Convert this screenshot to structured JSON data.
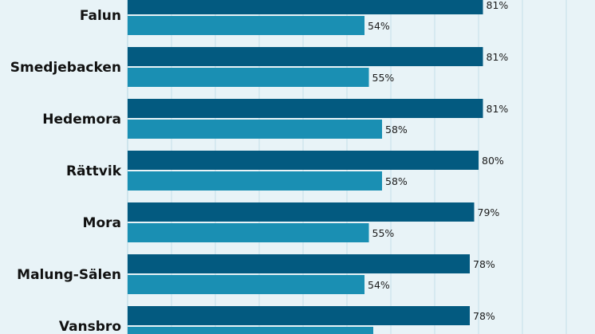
{
  "chart_data": {
    "type": "bar",
    "orientation": "horizontal",
    "categories": [
      "Falun",
      "Smedjebacken",
      "Hedemora",
      "Rättvik",
      "Mora",
      "Malung-Sälen",
      "Vansbro"
    ],
    "series": [
      {
        "values": [
          81,
          81,
          81,
          80,
          79,
          78,
          78
        ],
        "color": "#035a80",
        "value_labels": [
          "81%",
          "81%",
          "81%",
          "80%",
          "79%",
          "78%",
          "78%"
        ]
      },
      {
        "values": [
          54,
          55,
          58,
          58,
          55,
          54,
          56
        ],
        "color": "#1a8fb3",
        "value_labels": [
          "54%",
          "55%",
          "58%",
          "58%",
          "55%",
          "54%",
          ""
        ]
      }
    ],
    "xlim": [
      0,
      100
    ],
    "grid": true,
    "gridline_color": "#c5dfe9",
    "legend": "none"
  }
}
